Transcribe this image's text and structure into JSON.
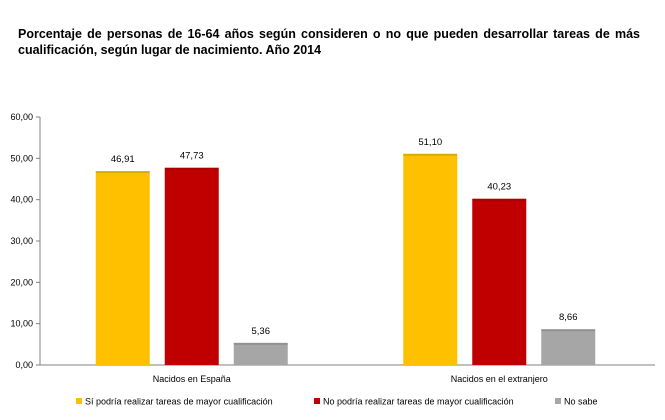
{
  "chart_data": {
    "type": "bar",
    "title": "Porcentaje de personas de 16-64 años según consideren o no que pueden desarrollar tareas de más cualificación, según lugar de nacimiento. Año 2014",
    "categories": [
      "Nacidos en España",
      "Nacidos en el extranjero"
    ],
    "series": [
      {
        "name": "Sí podría realizar tareas de mayor cualificación",
        "values": [
          46.91,
          51.1
        ],
        "labels": [
          "46,91",
          "51,10"
        ],
        "color": "#FFC000"
      },
      {
        "name": "No podría realizar tareas de mayor cualificación",
        "values": [
          47.73,
          40.23
        ],
        "labels": [
          "47,73",
          "40,23"
        ],
        "color": "#C00000"
      },
      {
        "name": "No sabe",
        "values": [
          5.36,
          8.66
        ],
        "labels": [
          "5,36",
          "8,66"
        ],
        "color": "#A6A6A6"
      }
    ],
    "ylim": [
      0,
      60
    ],
    "yticks": [
      "0,00",
      "10,00",
      "20,00",
      "30,00",
      "40,00",
      "50,00",
      "60,00"
    ],
    "xlabel": "",
    "ylabel": "",
    "grid": false,
    "legend_position": "bottom"
  }
}
